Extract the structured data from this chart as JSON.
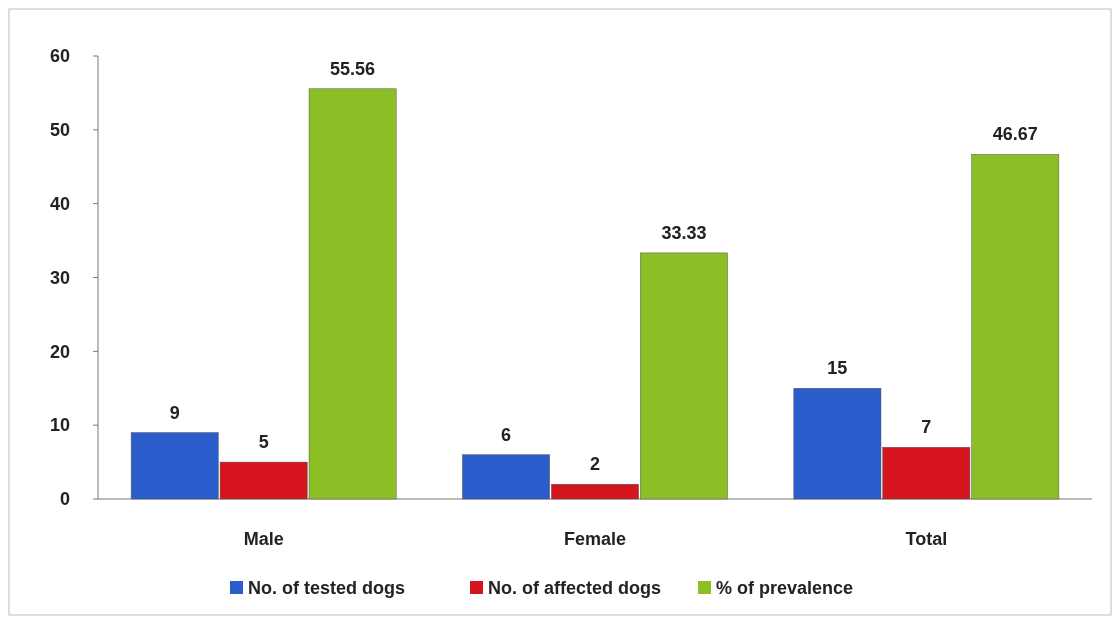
{
  "chart_data": {
    "type": "bar",
    "categories": [
      "Male",
      "Female",
      "Total"
    ],
    "series": [
      {
        "name": "No. of tested dogs",
        "color": "#2a5ccc",
        "values": [
          9,
          6,
          15
        ]
      },
      {
        "name": "No. of affected dogs",
        "color": "#d6141e",
        "values": [
          5,
          2,
          7
        ]
      },
      {
        "name": "% of prevalence",
        "color": "#8cbf26",
        "values": [
          55.56,
          33.33,
          46.67
        ]
      }
    ],
    "ylim": [
      0,
      60
    ],
    "yticks": [
      0,
      10,
      20,
      30,
      40,
      50,
      60
    ],
    "grid": false,
    "legend": "bottom",
    "data_labels": true
  }
}
